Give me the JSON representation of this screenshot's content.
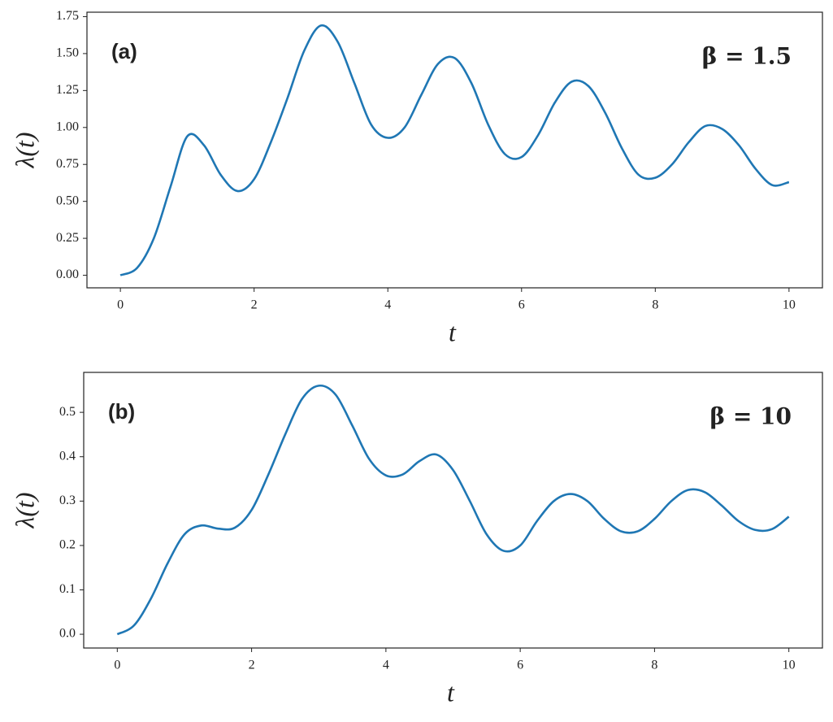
{
  "chart_data": [
    {
      "type": "line",
      "annotations": [
        "(a)",
        "β = 1.5"
      ],
      "xlabel": "t",
      "ylabel": "λ(t)",
      "x": [
        0,
        0.25,
        0.5,
        0.75,
        1,
        1.25,
        1.5,
        1.75,
        2,
        2.25,
        2.5,
        2.75,
        3,
        3.25,
        3.5,
        3.75,
        4,
        4.25,
        4.5,
        4.75,
        5,
        5.25,
        5.5,
        5.75,
        6,
        6.25,
        6.5,
        6.75,
        7,
        7.25,
        7.5,
        7.75,
        8,
        8.25,
        8.5,
        8.75,
        9,
        9.25,
        9.5,
        9.75,
        10
      ],
      "series": [
        {
          "color": "#1f77b4",
          "values": [
            0,
            0.05,
            0.25,
            0.6,
            0.94,
            0.88,
            0.68,
            0.57,
            0.65,
            0.9,
            1.2,
            1.52,
            1.69,
            1.58,
            1.3,
            1.02,
            0.93,
            1.0,
            1.22,
            1.43,
            1.47,
            1.3,
            1.02,
            0.82,
            0.8,
            0.95,
            1.17,
            1.31,
            1.28,
            1.1,
            0.86,
            0.68,
            0.66,
            0.75,
            0.9,
            1.01,
            0.99,
            0.88,
            0.72,
            0.61,
            0.63
          ]
        }
      ],
      "xlim": [
        -0.5,
        10.5
      ],
      "xticks": [
        0,
        2,
        4,
        6,
        8,
        10
      ],
      "ylim": [
        -0.085,
        1.78
      ],
      "yticks": [
        {
          "value": 0,
          "label": "0.00"
        },
        0.25,
        {
          "value": 0.5,
          "label": "0.50"
        },
        0.75,
        {
          "value": 1,
          "label": "1.00"
        },
        1.25,
        {
          "value": 1.5,
          "label": "1.50"
        },
        1.75
      ]
    },
    {
      "type": "line",
      "annotations": [
        "(b)",
        "β = 10"
      ],
      "xlabel": "t",
      "ylabel": "λ(t)",
      "x": [
        0,
        0.25,
        0.5,
        0.75,
        1,
        1.25,
        1.5,
        1.75,
        2,
        2.25,
        2.5,
        2.75,
        3,
        3.25,
        3.5,
        3.75,
        4,
        4.25,
        4.5,
        4.75,
        5,
        5.25,
        5.5,
        5.75,
        6,
        6.25,
        6.5,
        6.75,
        7,
        7.25,
        7.5,
        7.75,
        8,
        8.25,
        8.5,
        8.75,
        9,
        9.25,
        9.5,
        9.75,
        10
      ],
      "series": [
        {
          "color": "#1f77b4",
          "values": [
            0,
            0.02,
            0.08,
            0.16,
            0.225,
            0.245,
            0.238,
            0.24,
            0.28,
            0.36,
            0.45,
            0.53,
            0.56,
            0.54,
            0.47,
            0.395,
            0.358,
            0.36,
            0.39,
            0.405,
            0.37,
            0.3,
            0.225,
            0.188,
            0.2,
            0.255,
            0.3,
            0.316,
            0.3,
            0.26,
            0.232,
            0.232,
            0.26,
            0.3,
            0.325,
            0.32,
            0.29,
            0.255,
            0.235,
            0.237,
            0.265
          ]
        }
      ],
      "xlim": [
        -0.5,
        10.5
      ],
      "xticks": [
        0,
        2,
        4,
        6,
        8,
        10
      ],
      "ylim": [
        -0.031,
        0.59
      ],
      "yticks": [
        {
          "value": 0,
          "label": "0.0"
        },
        0.1,
        0.2,
        0.3,
        0.4,
        0.5
      ]
    }
  ]
}
